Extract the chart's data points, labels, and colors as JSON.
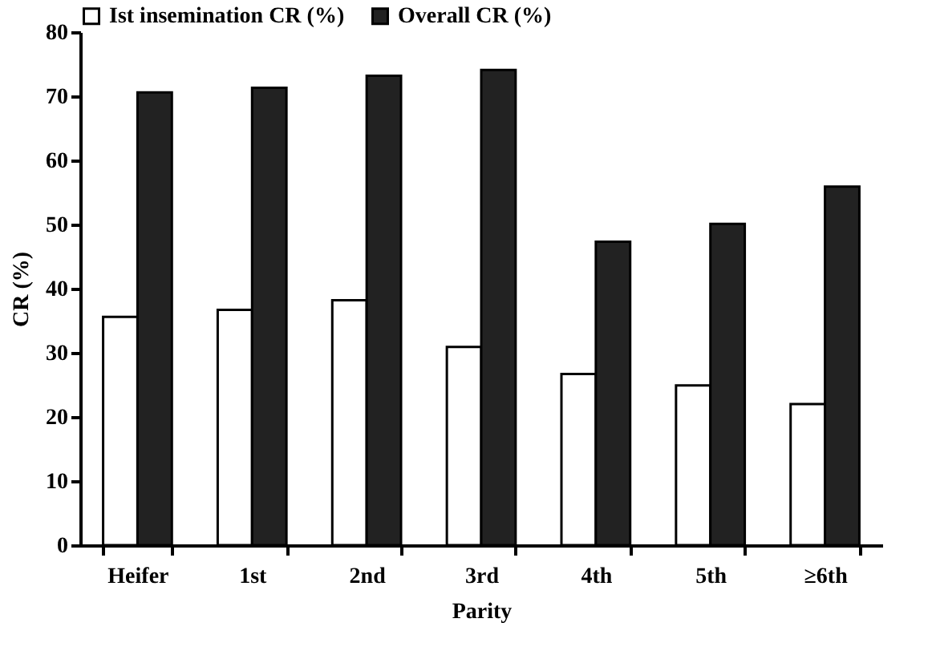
{
  "chart_data": {
    "type": "bar",
    "xlabel": "Parity",
    "ylabel": "CR (%)",
    "categories": [
      "Heifer",
      "1st",
      "2nd",
      "3rd",
      "4th",
      "5th",
      "≥6th"
    ],
    "series": [
      {
        "name": "Ist insemination CR (%)",
        "color": "#ffffff",
        "values": [
          35.6,
          36.7,
          38.2,
          30.9,
          26.7,
          24.9,
          22.0
        ]
      },
      {
        "name": "Overall CR (%)",
        "color": "#222222",
        "values": [
          70.6,
          71.3,
          73.2,
          74.1,
          47.3,
          50.1,
          55.9
        ]
      }
    ],
    "ylim": [
      0,
      80
    ],
    "yticks": [
      0,
      10,
      20,
      30,
      40,
      50,
      60,
      70,
      80
    ],
    "legend": "top",
    "grid": false
  }
}
